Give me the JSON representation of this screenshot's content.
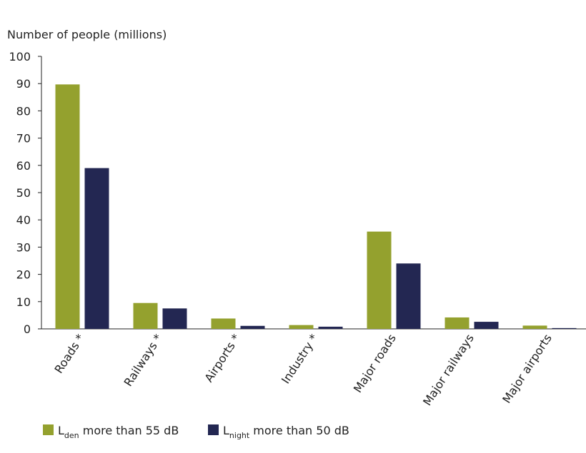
{
  "chart_data": {
    "type": "bar",
    "y_label": "Number of people (millions)",
    "categories": [
      "Roads *",
      "Railways *",
      "Airports *",
      "Industry *",
      "Major roads",
      "Major railways",
      "Major airports"
    ],
    "series": [
      {
        "name": [
          "L",
          "den",
          " more than 55 dB"
        ],
        "color": "#94a12e",
        "values": [
          89.7,
          9.5,
          3.8,
          1.4,
          35.7,
          4.2,
          1.2
        ]
      },
      {
        "name": [
          "L",
          "night",
          " more than 50 dB"
        ],
        "color": "#232752",
        "values": [
          59,
          7.5,
          1.1,
          0.8,
          24,
          2.6,
          0.3
        ]
      }
    ],
    "ylim": [
      0,
      100
    ],
    "yticks": [
      0,
      10,
      20,
      30,
      40,
      50,
      60,
      70,
      80,
      90,
      100
    ],
    "grid": false,
    "legend": "bottom"
  }
}
